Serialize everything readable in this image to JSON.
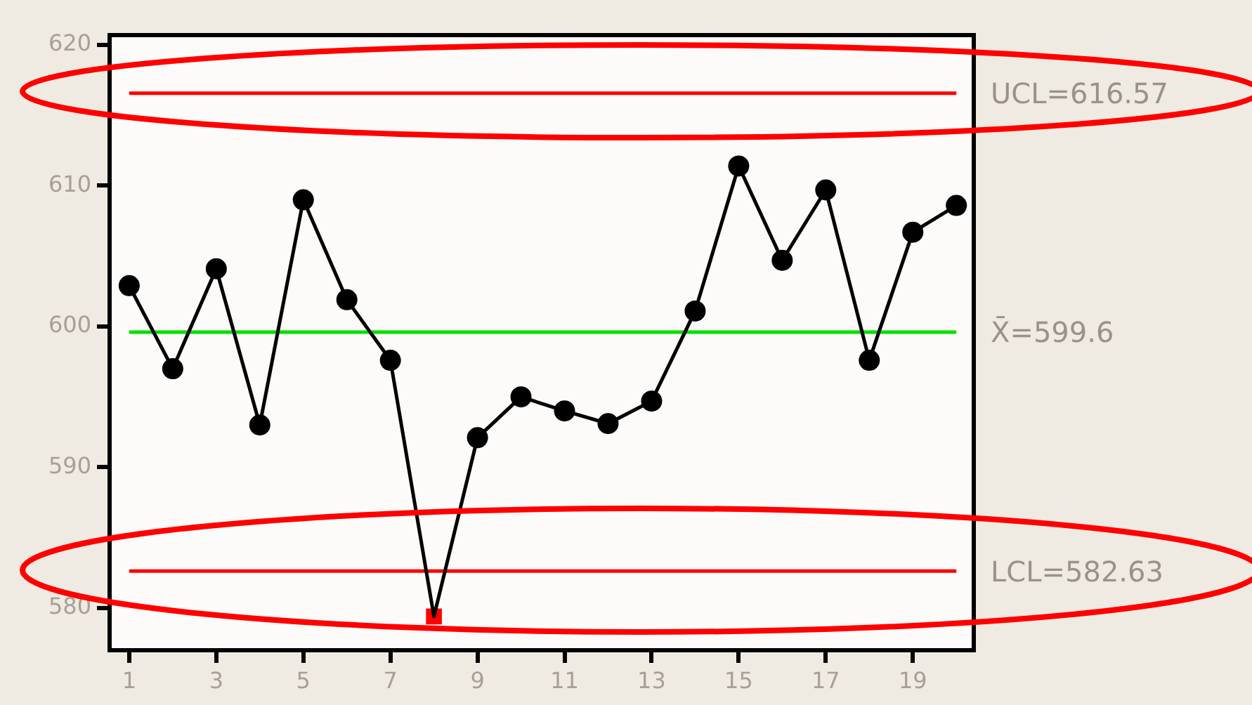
{
  "chart_data": {
    "type": "line",
    "x": [
      1,
      2,
      3,
      4,
      5,
      6,
      7,
      8,
      9,
      10,
      11,
      12,
      13,
      14,
      15,
      16,
      17,
      18,
      19,
      20
    ],
    "series": [
      {
        "type": "line",
        "color": "#000000",
        "marker": "none",
        "values": [
          602.9,
          597.0,
          604.1,
          593.0,
          609.0,
          601.9,
          597.6,
          579.4,
          592.1,
          595.0,
          594.0,
          593.1,
          594.7,
          601.1,
          611.4,
          604.7,
          609.7,
          597.6,
          606.7,
          608.6
        ]
      },
      {
        "type": "scatter",
        "color": "#000000",
        "marker": "circle",
        "x": [
          1,
          2,
          3,
          4,
          5,
          6,
          7,
          9,
          10,
          11,
          12,
          13,
          14,
          15,
          16,
          17,
          18,
          19,
          20
        ],
        "values": [
          602.9,
          597.0,
          604.1,
          593.0,
          609.0,
          601.9,
          597.6,
          592.1,
          595.0,
          594.0,
          593.1,
          594.7,
          601.1,
          611.4,
          604.7,
          609.7,
          597.6,
          606.7,
          608.6
        ]
      },
      {
        "type": "scatter",
        "color": "#ff0000",
        "marker": "square",
        "x": [
          8
        ],
        "values": [
          579.4
        ]
      }
    ],
    "xlim": [
      0.55,
      20.4
    ],
    "xticks": [
      1,
      3,
      5,
      7,
      9,
      11,
      13,
      15,
      17,
      19
    ],
    "ylim": [
      577,
      620.7
    ],
    "yticks": [
      580,
      590,
      600,
      610,
      620
    ],
    "ref_lines": [
      {
        "axis": "y",
        "value": 616.57,
        "label": "UCL=616.57",
        "color": "#ff0000"
      },
      {
        "axis": "y",
        "value": 599.6,
        "label": "X̄=599.6",
        "color": "#00e000"
      },
      {
        "axis": "y",
        "value": 582.63,
        "label": "LCL=582.63",
        "color": "#ff0000"
      }
    ],
    "grid": false,
    "legend": false
  }
}
